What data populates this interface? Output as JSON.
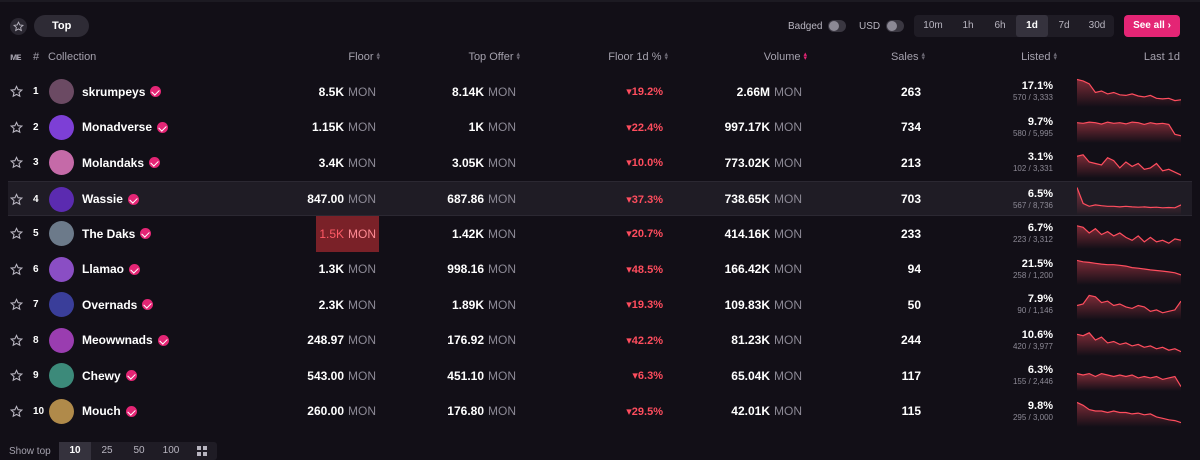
{
  "toolbar": {
    "top_label": "Top",
    "badged_label": "Badged",
    "usd_label": "USD",
    "timeframes": [
      "10m",
      "1h",
      "6h",
      "1d",
      "7d",
      "30d"
    ],
    "active_timeframe": "1d",
    "see_all_label": "See all",
    "accent_color": "#e42575"
  },
  "table": {
    "headers": {
      "rank": "#",
      "collection": "Collection",
      "floor": "Floor",
      "top_offer": "Top Offer",
      "floor_change": "Floor 1d %",
      "volume": "Volume",
      "sales": "Sales",
      "listed": "Listed",
      "last": "Last 1d"
    },
    "currency": "MON",
    "rows": [
      {
        "rank": "1",
        "name": "skrumpeys",
        "floor": "8.5K",
        "top_offer": "8.14K",
        "change": "▾19.2%",
        "volume": "2.66M",
        "sales": "263",
        "listed_pct": "17.1%",
        "listed_sub": "570 / 3,333",
        "avatar_color": "#6b4a63",
        "trend": [
          0.95,
          0.9,
          0.8,
          0.5,
          0.55,
          0.45,
          0.5,
          0.42,
          0.4,
          0.45,
          0.38,
          0.35,
          0.4,
          0.3,
          0.28,
          0.3,
          0.22,
          0.25
        ]
      },
      {
        "rank": "2",
        "name": "Monadverse",
        "floor": "1.15K",
        "top_offer": "1K",
        "change": "▾22.4%",
        "volume": "997.17K",
        "sales": "734",
        "listed_pct": "9.7%",
        "listed_sub": "580 / 5,995",
        "avatar_color": "#7d3fd6",
        "trend": [
          0.7,
          0.68,
          0.72,
          0.7,
          0.65,
          0.72,
          0.68,
          0.7,
          0.66,
          0.72,
          0.7,
          0.64,
          0.7,
          0.66,
          0.68,
          0.64,
          0.3,
          0.25
        ]
      },
      {
        "rank": "3",
        "name": "Molandaks",
        "floor": "3.4K",
        "top_offer": "3.05K",
        "change": "▾10.0%",
        "volume": "773.02K",
        "sales": "213",
        "listed_pct": "3.1%",
        "listed_sub": "102 / 3,331",
        "avatar_color": "#c56aa8",
        "trend": [
          0.75,
          0.8,
          0.55,
          0.5,
          0.45,
          0.7,
          0.6,
          0.35,
          0.55,
          0.4,
          0.5,
          0.3,
          0.35,
          0.5,
          0.25,
          0.3,
          0.2,
          0.1
        ]
      },
      {
        "rank": "4",
        "name": "Wassie",
        "floor": "847.00",
        "top_offer": "687.86",
        "change": "▾37.3%",
        "volume": "738.65K",
        "sales": "703",
        "listed_pct": "6.5%",
        "listed_sub": "567 / 8,736",
        "avatar_color": "#5b2bb0",
        "trend": [
          0.95,
          0.4,
          0.3,
          0.35,
          0.32,
          0.3,
          0.3,
          0.28,
          0.3,
          0.28,
          0.27,
          0.28,
          0.26,
          0.27,
          0.25,
          0.26,
          0.25,
          0.35
        ]
      },
      {
        "rank": "5",
        "name": "The Daks",
        "floor": "1.5K",
        "top_offer": "1.42K",
        "change": "▾20.7%",
        "volume": "414.16K",
        "sales": "233",
        "listed_pct": "6.7%",
        "listed_sub": "223 / 3,312",
        "avatar_color": "#6c7a8a",
        "trend": [
          0.8,
          0.75,
          0.55,
          0.7,
          0.5,
          0.6,
          0.45,
          0.55,
          0.4,
          0.3,
          0.45,
          0.25,
          0.4,
          0.25,
          0.3,
          0.2,
          0.35,
          0.3
        ]
      },
      {
        "rank": "6",
        "name": "Llamao",
        "floor": "1.3K",
        "top_offer": "998.16",
        "change": "▾48.5%",
        "volume": "166.42K",
        "sales": "94",
        "listed_pct": "21.5%",
        "listed_sub": "258 / 1,200",
        "avatar_color": "#8a4ec4",
        "trend": [
          0.85,
          0.8,
          0.78,
          0.75,
          0.72,
          0.7,
          0.7,
          0.68,
          0.65,
          0.6,
          0.58,
          0.55,
          0.52,
          0.5,
          0.48,
          0.45,
          0.42,
          0.35
        ]
      },
      {
        "rank": "7",
        "name": "Overnads",
        "floor": "2.3K",
        "top_offer": "1.89K",
        "change": "▾19.3%",
        "volume": "109.83K",
        "sales": "50",
        "listed_pct": "7.9%",
        "listed_sub": "90 / 1,146",
        "avatar_color": "#3a3e9a",
        "trend": [
          0.5,
          0.55,
          0.85,
          0.8,
          0.6,
          0.65,
          0.5,
          0.55,
          0.45,
          0.4,
          0.5,
          0.45,
          0.3,
          0.35,
          0.25,
          0.3,
          0.35,
          0.65
        ]
      },
      {
        "rank": "8",
        "name": "Meowwnads",
        "floor": "248.97",
        "top_offer": "176.92",
        "change": "▾42.2%",
        "volume": "81.23K",
        "sales": "244",
        "listed_pct": "10.6%",
        "listed_sub": "420 / 3,977",
        "avatar_color": "#9a3db0",
        "trend": [
          0.75,
          0.7,
          0.8,
          0.55,
          0.65,
          0.45,
          0.5,
          0.4,
          0.45,
          0.35,
          0.4,
          0.3,
          0.35,
          0.25,
          0.3,
          0.2,
          0.25,
          0.15
        ]
      },
      {
        "rank": "9",
        "name": "Chewy",
        "floor": "543.00",
        "top_offer": "451.10",
        "change": "▾6.3%",
        "volume": "65.04K",
        "sales": "117",
        "listed_pct": "6.3%",
        "listed_sub": "155 / 2,446",
        "avatar_color": "#3c8a7a",
        "trend": [
          0.6,
          0.55,
          0.6,
          0.5,
          0.6,
          0.55,
          0.5,
          0.55,
          0.5,
          0.55,
          0.45,
          0.5,
          0.45,
          0.5,
          0.4,
          0.45,
          0.5,
          0.15
        ]
      },
      {
        "rank": "10",
        "name": "Mouch",
        "floor": "260.00",
        "top_offer": "176.80",
        "change": "▾29.5%",
        "volume": "42.01K",
        "sales": "115",
        "listed_pct": "9.8%",
        "listed_sub": "295 / 3,000",
        "avatar_color": "#b08a4a",
        "trend": [
          0.85,
          0.75,
          0.6,
          0.55,
          0.55,
          0.5,
          0.55,
          0.5,
          0.5,
          0.45,
          0.48,
          0.42,
          0.45,
          0.35,
          0.3,
          0.25,
          0.22,
          0.15
        ]
      }
    ],
    "down_color": "#ff4d5e"
  },
  "footer": {
    "show_top_label": "Show top",
    "page_sizes": [
      "10",
      "25",
      "50",
      "100"
    ],
    "active_page_size": "10"
  }
}
